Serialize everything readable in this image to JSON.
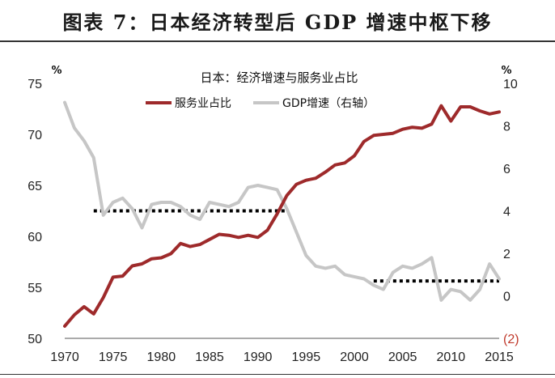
{
  "figure": {
    "title": "图表 7：日本经济转型后 GDP 增速中枢下移"
  },
  "chart_data": {
    "type": "line",
    "title": "日本：经济增速与服务业占比",
    "y_left_unit": "%",
    "y_right_unit": "%",
    "xlim": [
      1970,
      2015
    ],
    "ylim_left": [
      50,
      75
    ],
    "ylim_right": [
      -2,
      10
    ],
    "x_ticks": [
      "1970",
      "1975",
      "1980",
      "1985",
      "1990",
      "1995",
      "2000",
      "2005",
      "2010",
      "2015"
    ],
    "y_left_ticks": [
      "50",
      "55",
      "60",
      "65",
      "70",
      "75"
    ],
    "y_right_ticks": [
      "(2)",
      "0",
      "2",
      "4",
      "6",
      "8",
      "10"
    ],
    "grid": false,
    "legend_position": "top",
    "colors": {
      "services": "#9e2a2b",
      "gdp": "#c6c6c6",
      "avg_line": "#000000"
    },
    "series": [
      {
        "name": "服务业占比",
        "axis": "left",
        "x": [
          1970,
          1971,
          1972,
          1973,
          1974,
          1975,
          1976,
          1977,
          1978,
          1979,
          1980,
          1981,
          1982,
          1983,
          1984,
          1985,
          1986,
          1987,
          1988,
          1989,
          1990,
          1991,
          1992,
          1993,
          1994,
          1995,
          1996,
          1997,
          1998,
          1999,
          2000,
          2001,
          2002,
          2003,
          2004,
          2005,
          2006,
          2007,
          2008,
          2009,
          2010,
          2011,
          2012,
          2013,
          2014,
          2015
        ],
        "values": [
          51.2,
          52.3,
          53.1,
          52.4,
          54.0,
          56.0,
          56.1,
          57.1,
          57.3,
          57.8,
          57.9,
          58.3,
          59.3,
          59.0,
          59.2,
          59.7,
          60.2,
          60.1,
          59.9,
          60.1,
          59.9,
          60.6,
          62.2,
          64.0,
          65.1,
          65.5,
          65.7,
          66.3,
          67.0,
          67.2,
          67.9,
          69.3,
          69.9,
          70.0,
          70.1,
          70.5,
          70.7,
          70.6,
          71.0,
          72.8,
          71.3,
          72.7,
          72.7,
          72.3,
          72.0,
          72.2
        ]
      },
      {
        "name": "GDP增速（右轴）",
        "axis": "right",
        "x": [
          1970,
          1971,
          1972,
          1973,
          1974,
          1975,
          1976,
          1977,
          1978,
          1979,
          1980,
          1981,
          1982,
          1983,
          1984,
          1985,
          1986,
          1987,
          1988,
          1989,
          1990,
          1991,
          1992,
          1993,
          1994,
          1995,
          1996,
          1997,
          1998,
          1999,
          2000,
          2001,
          2002,
          2003,
          2004,
          2005,
          2006,
          2007,
          2008,
          2009,
          2010,
          2011,
          2012,
          2013,
          2014,
          2015
        ],
        "values": [
          9.1,
          7.9,
          7.3,
          6.5,
          3.8,
          4.4,
          4.6,
          4.1,
          3.2,
          4.3,
          4.4,
          4.4,
          4.2,
          3.8,
          3.6,
          4.4,
          4.3,
          4.2,
          4.4,
          5.1,
          5.2,
          5.1,
          5.0,
          4.1,
          3.0,
          1.9,
          1.4,
          1.3,
          1.4,
          1.0,
          0.9,
          0.8,
          0.5,
          0.3,
          1.1,
          1.4,
          1.3,
          1.5,
          1.8,
          -0.2,
          0.3,
          0.2,
          -0.2,
          0.3,
          1.5,
          0.8
        ]
      }
    ],
    "reference_lines": [
      {
        "axis": "right",
        "x": [
          1973,
          1993
        ],
        "y": 4.0,
        "style": "dotted"
      },
      {
        "axis": "right",
        "x": [
          2002,
          2015
        ],
        "y": 0.7,
        "style": "dotted"
      }
    ]
  }
}
